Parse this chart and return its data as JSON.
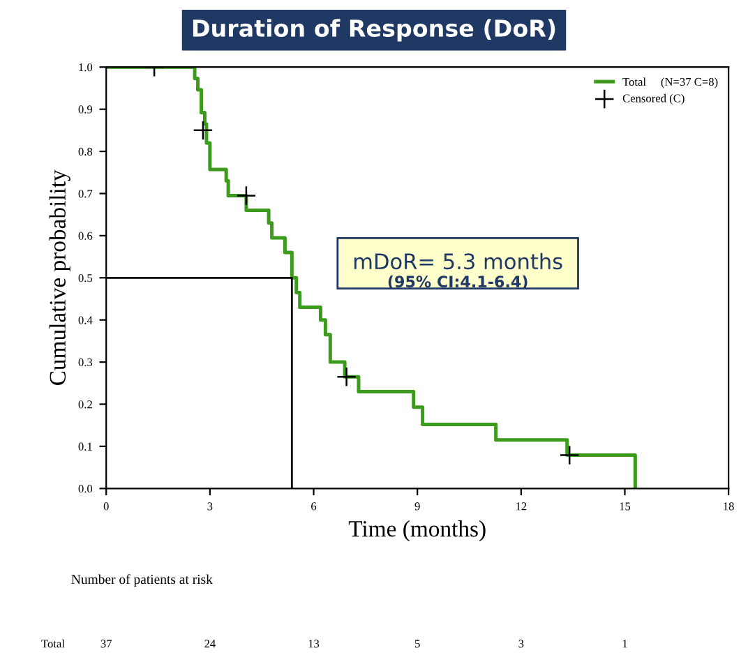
{
  "chart_data": {
    "type": "step",
    "title": "Duration of Response (DoR)",
    "xlabel": "Time (months)",
    "ylabel": "Cumulative probability",
    "series": [
      {
        "name": "Total     (N=37 C=8)",
        "color": "#3c9a1c",
        "x": [
          0,
          2.56,
          2.65,
          2.75,
          2.85,
          2.9,
          3.0,
          3.47,
          3.53,
          4.05,
          4.7,
          4.79,
          5.17,
          5.37,
          5.5,
          5.6,
          6.2,
          6.34,
          6.48,
          6.9,
          7.3,
          8.89,
          9.15,
          11.27,
          13.33,
          15.3
        ],
        "values": [
          1.0,
          0.973,
          0.946,
          0.892,
          0.865,
          0.82,
          0.757,
          0.73,
          0.695,
          0.66,
          0.63,
          0.595,
          0.56,
          0.5,
          0.465,
          0.43,
          0.4,
          0.365,
          0.3,
          0.265,
          0.23,
          0.193,
          0.152,
          0.115,
          0.079,
          0.0
        ]
      },
      {
        "name": "Censored (C)",
        "type": "scatter",
        "color": "#000000",
        "marker": "cross",
        "x": [
          1.39,
          2.8,
          4.05,
          6.95,
          13.4
        ],
        "values": [
          1.0,
          0.85,
          0.695,
          0.265,
          0.079
        ]
      },
      {
        "type": "line",
        "color": "#000000",
        "x": [
          0,
          5.37,
          5.37
        ],
        "values": [
          0.5,
          0.5,
          0
        ]
      }
    ],
    "xlim": [
      0,
      18
    ],
    "xticks": [
      0,
      3,
      6,
      9,
      12,
      15,
      18
    ],
    "ylim": [
      0,
      1.0
    ],
    "yticks": [
      {
        "value": 0,
        "label": "0.0"
      },
      {
        "value": 0.1,
        "label": "0.1"
      },
      {
        "value": 0.2,
        "label": "0.2"
      },
      {
        "value": 0.3,
        "label": "0.3"
      },
      {
        "value": 0.4,
        "label": "0.4"
      },
      {
        "value": 0.5,
        "label": "0.5"
      },
      {
        "value": 0.6,
        "label": "0.6"
      },
      {
        "value": 0.7,
        "label": "0.7"
      },
      {
        "value": 0.8,
        "label": "0.8"
      },
      {
        "value": 0.9,
        "label": "0.9"
      },
      {
        "value": 1.0,
        "label": "1.0"
      }
    ],
    "legend": "top right",
    "grid": false,
    "annotations": [
      "mDoR= 5.3 months",
      "(95% CI:4.1-6.4)",
      "Number of patients at risk",
      "Total",
      "37",
      "24",
      "13",
      "5",
      "3",
      "1"
    ]
  }
}
